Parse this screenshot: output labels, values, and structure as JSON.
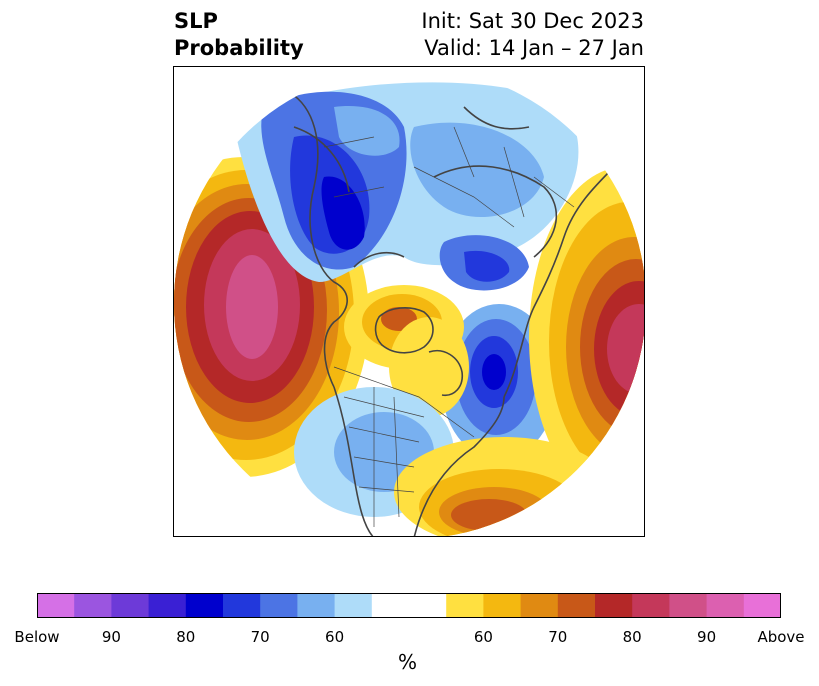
{
  "title": {
    "left_line1": "SLP",
    "left_line2": "Probability",
    "right_line1": "Init: Sat 30 Dec 2023",
    "right_line2": "Valid: 14 Jan – 27 Jan"
  },
  "colorbar": {
    "colors": [
      "#d570e6",
      "#9b55e0",
      "#6d3ad8",
      "#3a20d4",
      "#0000cd",
      "#2238dc",
      "#4c74e4",
      "#78b0f0",
      "#aedcf9",
      "#ffffff",
      "#ffffff",
      "#ffe040",
      "#f4b810",
      "#e08a12",
      "#c85818",
      "#b42828",
      "#c4385a",
      "#d05088",
      "#dc60b0",
      "#e870d8"
    ],
    "ticks": [
      "Below",
      "90",
      "80",
      "70",
      "60",
      "60",
      "70",
      "80",
      "90",
      "Above"
    ],
    "unit": "%"
  },
  "map": {
    "projection": "north-polar-stereographic",
    "palette": {
      "blue_light": "#aedcf9",
      "blue_2": "#78b0f0",
      "blue_3": "#4c74e4",
      "blue_4": "#2238dc",
      "blue_5": "#0000cd",
      "yellow_1": "#ffe040",
      "yellow_2": "#f4b810",
      "orange": "#e08a12",
      "orange_dark": "#c85818",
      "red": "#b42828",
      "crimson": "#c4385a",
      "pink": "#d05088",
      "coast": "#444444"
    }
  }
}
